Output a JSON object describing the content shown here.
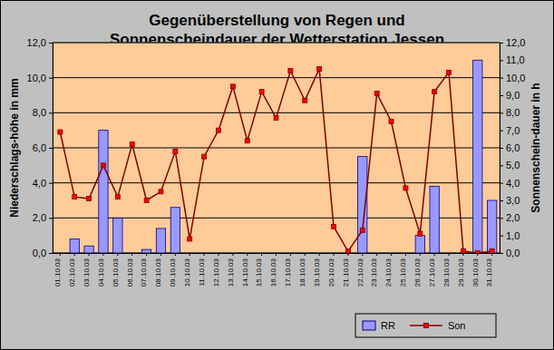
{
  "chart_data": {
    "type": "bar",
    "title": "Gegenüberstellung von Regen und\nSonnenscheindauer der Wetterstation Jessen",
    "ylabel": "Niederschlags-höhe in mm",
    "y2label": "Sonnenschein-dauer in h",
    "categories": [
      "01.10.03",
      "02.10.03",
      "03.10.03",
      "04.10.03",
      "05.10.03",
      "06.10.03",
      "07.10.03",
      "08.10.03",
      "09.10.03",
      "10.10.03",
      "11.10.03",
      "12.10.03",
      "13.10.03",
      "14.10.03",
      "15.10.03",
      "16.10.03",
      "17.10.03",
      "18.10.03",
      "19.10.03",
      "20.10.03",
      "21.10.03",
      "22.10.03",
      "23.10.03",
      "24.10.03",
      "25.10.03",
      "26.10.03",
      "27.10.03",
      "28.10.03",
      "29.10.03",
      "30.10.03",
      "31.10.03"
    ],
    "series": [
      {
        "name": "RR",
        "type": "bar",
        "color": "#9999ff",
        "values": [
          0,
          0.8,
          0.4,
          7.0,
          2.0,
          0,
          0.2,
          1.4,
          2.6,
          0,
          0,
          0,
          0,
          0,
          0,
          0,
          0,
          0,
          0,
          0,
          0,
          5.5,
          0,
          0,
          0,
          1.0,
          3.8,
          0,
          0,
          11.0,
          3.0
        ]
      },
      {
        "name": "Son",
        "type": "line",
        "color": "#800000",
        "marker": "square",
        "axis": "y2",
        "values": [
          6.9,
          3.2,
          3.1,
          5.0,
          3.2,
          6.2,
          3.0,
          3.5,
          5.8,
          0.8,
          5.5,
          7.0,
          9.5,
          6.4,
          9.2,
          7.7,
          10.4,
          8.7,
          10.5,
          1.5,
          0.1,
          1.3,
          9.1,
          7.5,
          3.7,
          1.1,
          9.2,
          10.3,
          0.1,
          0.0,
          0.1
        ]
      }
    ],
    "ylim": [
      0,
      12
    ],
    "yticks": [
      {
        "value": 0,
        "label": "0,0"
      },
      {
        "value": 2,
        "label": "2,0"
      },
      {
        "value": 4,
        "label": "4,0"
      },
      {
        "value": 6,
        "label": "6,0"
      },
      {
        "value": 8,
        "label": "8,0"
      },
      {
        "value": 10,
        "label": "10,0"
      },
      {
        "value": 12,
        "label": "12,0"
      }
    ],
    "y2lim": [
      0,
      12
    ],
    "y2ticks": [
      {
        "value": 0,
        "label": "0,0"
      },
      {
        "value": 1,
        "label": "1,0"
      },
      {
        "value": 2,
        "label": "2,0"
      },
      {
        "value": 3,
        "label": "3,0"
      },
      {
        "value": 4,
        "label": "4,0"
      },
      {
        "value": 5,
        "label": "5,0"
      },
      {
        "value": 6,
        "label": "6,0"
      },
      {
        "value": 7,
        "label": "7,0"
      },
      {
        "value": 8,
        "label": "8,0"
      },
      {
        "value": 9,
        "label": "9,0"
      },
      {
        "value": 10,
        "label": "10,0"
      },
      {
        "value": 11,
        "label": "11,0"
      },
      {
        "value": 12,
        "label": "12,0"
      }
    ],
    "grid": true,
    "legend": "bottom-right"
  }
}
